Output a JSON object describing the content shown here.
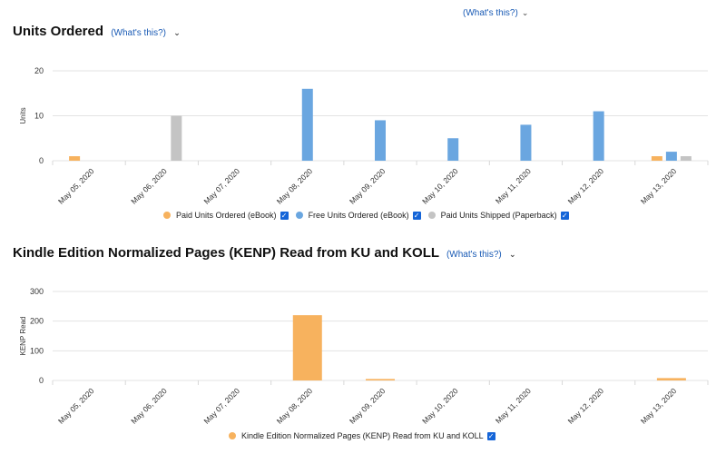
{
  "top_link": "(What's this?)",
  "section1": {
    "title": "Units Ordered",
    "whats_this": "(What's this?)"
  },
  "section2": {
    "title": "Kindle Edition Normalized Pages (KENP) Read from KU and KOLL",
    "whats_this": "(What's this?)"
  },
  "colors": {
    "paid": "#f7b25e",
    "free": "#6aa6e0",
    "shipped": "#c4c4c4",
    "kenp": "#f7b25e",
    "grid": "#e3e3e3",
    "check": "#1565d8"
  },
  "chart_data": [
    {
      "type": "bar",
      "title": "Units Ordered",
      "xlabel": "",
      "ylabel": "Units",
      "ylim": [
        0,
        20
      ],
      "yticks": [
        0,
        10,
        20
      ],
      "categories": [
        "May 05, 2020",
        "May 06, 2020",
        "May 07, 2020",
        "May 08, 2020",
        "May 09, 2020",
        "May 10, 2020",
        "May 11, 2020",
        "May 12, 2020",
        "May 13, 2020"
      ],
      "series": [
        {
          "name": "Paid Units Ordered (eBook)",
          "color": "#f7b25e",
          "values": [
            1,
            0,
            0,
            0,
            0,
            0,
            0,
            0,
            1
          ]
        },
        {
          "name": "Free Units Ordered (eBook)",
          "color": "#6aa6e0",
          "values": [
            0,
            0,
            0,
            16,
            9,
            5,
            8,
            11,
            2
          ]
        },
        {
          "name": "Paid Units Shipped (Paperback)",
          "color": "#c4c4c4",
          "values": [
            0,
            10,
            0,
            0,
            0,
            0,
            0,
            0,
            1
          ]
        }
      ],
      "grid": true,
      "legend": "bottom-center"
    },
    {
      "type": "bar",
      "title": "Kindle Edition Normalized Pages (KENP) Read from KU and KOLL",
      "xlabel": "",
      "ylabel": "KENP Read",
      "ylim": [
        0,
        300
      ],
      "yticks": [
        0,
        100,
        200,
        300
      ],
      "categories": [
        "May 05, 2020",
        "May 06, 2020",
        "May 07, 2020",
        "May 08, 2020",
        "May 09, 2020",
        "May 10, 2020",
        "May 11, 2020",
        "May 12, 2020",
        "May 13, 2020"
      ],
      "series": [
        {
          "name": "Kindle Edition Normalized Pages (KENP) Read from KU and KOLL",
          "color": "#f7b25e",
          "values": [
            0,
            0,
            0,
            220,
            5,
            0,
            0,
            0,
            8
          ]
        }
      ],
      "grid": true,
      "legend": "bottom-center"
    }
  ]
}
